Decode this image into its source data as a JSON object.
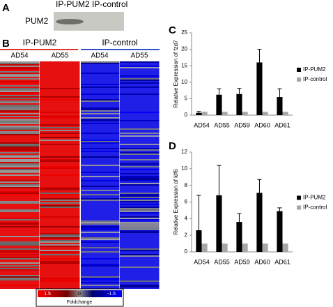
{
  "panels": {
    "a": {
      "letter": "A",
      "row_label": "PUM2",
      "col_labels": [
        "IP-PUM2",
        "IP-control"
      ]
    },
    "b": {
      "letter": "B",
      "groups": [
        "IP-PUM2",
        "IP-control"
      ],
      "columns": [
        "AD54",
        "AD55",
        "AD54",
        "AD55"
      ],
      "legend": {
        "labels": [
          "1.5",
          "0",
          "-1.5"
        ],
        "title": "Foldchange"
      }
    },
    "c": {
      "letter": "C"
    },
    "d": {
      "letter": "D"
    }
  },
  "chart_data": [
    {
      "type": "bar",
      "ylabel": "Relative Expression of fzd7",
      "categories": [
        "AD54",
        "AD55",
        "AD59",
        "AD60",
        "AD61"
      ],
      "series": [
        {
          "name": "IP-PUM2",
          "color": "#000000",
          "values": [
            0.7,
            6.2,
            6.4,
            16,
            5.5
          ],
          "errors": [
            0.4,
            1.8,
            1.7,
            4,
            2.5
          ]
        },
        {
          "name": "IP-control",
          "color": "#a6a6a6",
          "values": [
            1,
            1,
            1,
            1,
            1
          ]
        }
      ],
      "ylim": [
        0,
        25
      ],
      "yticks": [
        0,
        5,
        10,
        15,
        20,
        25
      ]
    },
    {
      "type": "bar",
      "ylabel": "Relative Expression of klf6",
      "categories": [
        "AD54",
        "AD55",
        "AD59",
        "AD60",
        "AD61"
      ],
      "series": [
        {
          "name": "IP-PUM2",
          "color": "#000000",
          "values": [
            2.6,
            6.8,
            3.6,
            7.1,
            4.9
          ],
          "errors": [
            4.2,
            3.6,
            1.0,
            1.6,
            0.4
          ]
        },
        {
          "name": "IP-control",
          "color": "#a6a6a6",
          "values": [
            1,
            1,
            1,
            1,
            1
          ]
        }
      ],
      "ylim": [
        0,
        12
      ],
      "yticks": [
        0,
        2,
        4,
        6,
        8,
        10,
        12
      ]
    }
  ]
}
